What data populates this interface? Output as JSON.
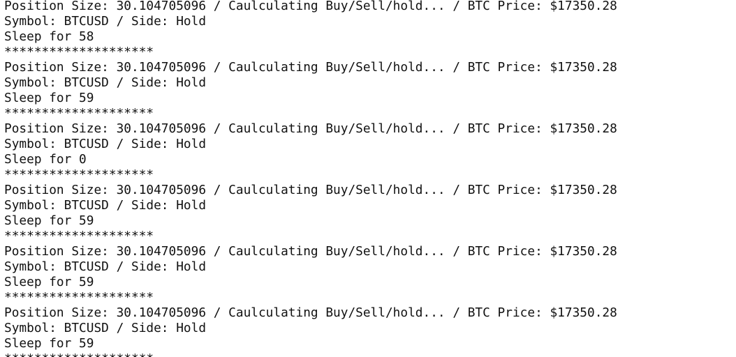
{
  "terminal": {
    "lines": [
      "Position Size: 30.104705096 / Caulculating Buy/Sell/hold... / BTC Price: $17350.28",
      "Symbol: BTCUSD / Side: Hold",
      "Sleep for 58",
      "********************",
      "Position Size: 30.104705096 / Caulculating Buy/Sell/hold... / BTC Price: $17350.28",
      "Symbol: BTCUSD / Side: Hold",
      "Sleep for 59",
      "********************",
      "Position Size: 30.104705096 / Caulculating Buy/Sell/hold... / BTC Price: $17350.28",
      "Symbol: BTCUSD / Side: Hold",
      "Sleep for 0",
      "********************",
      "Position Size: 30.104705096 / Caulculating Buy/Sell/hold... / BTC Price: $17350.28",
      "Symbol: BTCUSD / Side: Hold",
      "Sleep for 59",
      "********************",
      "Position Size: 30.104705096 / Caulculating Buy/Sell/hold... / BTC Price: $17350.28",
      "Symbol: BTCUSD / Side: Hold",
      "Sleep for 59",
      "********************",
      "Position Size: 30.104705096 / Caulculating Buy/Sell/hold... / BTC Price: $17350.28",
      "Symbol: BTCUSD / Side: Hold",
      "Sleep for 59",
      "********************"
    ]
  }
}
